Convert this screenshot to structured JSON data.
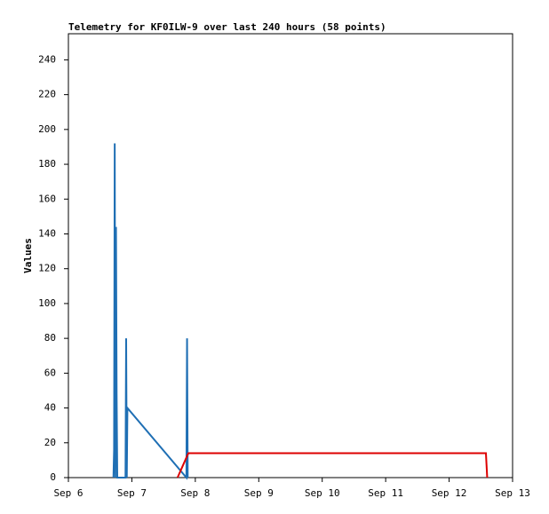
{
  "chart_data": {
    "type": "line",
    "title": "Telemetry for KF0ILW-9 over last 240 hours (58 points)",
    "y_label": "Values",
    "xlim": [
      0,
      7
    ],
    "xticks": [
      {
        "value": 0,
        "label": "Sep 6"
      },
      {
        "value": 1,
        "label": "Sep 7"
      },
      {
        "value": 2,
        "label": "Sep 8"
      },
      {
        "value": 3,
        "label": "Sep 9"
      },
      {
        "value": 4,
        "label": "Sep 10"
      },
      {
        "value": 5,
        "label": "Sep 11"
      },
      {
        "value": 6,
        "label": "Sep 12"
      },
      {
        "value": 7,
        "label": "Sep 13"
      }
    ],
    "ylim": [
      0,
      255
    ],
    "yticks": [
      0,
      20,
      40,
      60,
      80,
      100,
      120,
      140,
      160,
      180,
      200,
      220,
      240
    ],
    "series": [
      {
        "color": "#1f6fb4",
        "x": [
          0.71,
          0.72,
          0.73,
          0.74,
          0.75,
          0.76,
          0.77,
          0.9,
          0.91,
          0.92,
          0.93,
          1.86,
          1.87,
          1.88
        ],
        "values": [
          0,
          16,
          192,
          0,
          144,
          48,
          0,
          0,
          80,
          0,
          40,
          0,
          80,
          0
        ]
      },
      {
        "color": "#dd0000",
        "x": [
          1.72,
          1.89,
          6.58,
          6.59,
          6.6
        ],
        "values": [
          0,
          14,
          14,
          7,
          0
        ]
      }
    ]
  }
}
